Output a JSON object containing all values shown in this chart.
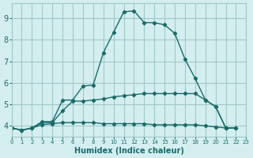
{
  "xlabel": "Humidex (Indice chaleur)",
  "background_color": "#d4eef0",
  "grid_color": "#a0c8c8",
  "line_color": "#1a6b6b",
  "xlim": [
    0,
    23
  ],
  "ylim": [
    3.5,
    9.7
  ],
  "xticks": [
    0,
    1,
    2,
    3,
    4,
    5,
    6,
    7,
    8,
    9,
    10,
    11,
    12,
    13,
    14,
    15,
    16,
    17,
    18,
    19,
    20,
    21,
    22,
    23
  ],
  "yticks": [
    4,
    5,
    6,
    7,
    8,
    9
  ],
  "series": [
    {
      "x": [
        0,
        1,
        2,
        3,
        4,
        5,
        6,
        7,
        8,
        9,
        10,
        11,
        12,
        13,
        14,
        15,
        16,
        17,
        18,
        19,
        20,
        21,
        22
      ],
      "y": [
        3.9,
        3.8,
        3.9,
        4.2,
        4.2,
        5.2,
        5.2,
        5.85,
        5.9,
        7.4,
        8.35,
        9.3,
        9.35,
        8.8,
        8.8,
        8.7,
        8.3,
        7.1,
        6.2,
        5.2,
        4.9,
        3.9,
        3.9
      ]
    },
    {
      "x": [
        0,
        1,
        2,
        3,
        4,
        5,
        6,
        7,
        8,
        9,
        10,
        11,
        12,
        13,
        14,
        15,
        16,
        17,
        18,
        19,
        20,
        21,
        22
      ],
      "y": [
        3.9,
        3.8,
        3.9,
        4.15,
        4.15,
        4.7,
        5.15,
        5.15,
        5.2,
        5.25,
        5.35,
        5.4,
        5.45,
        5.5,
        5.5,
        5.5,
        5.5,
        5.5,
        5.5,
        5.2,
        4.9,
        3.9,
        3.9
      ]
    },
    {
      "x": [
        0,
        1,
        2,
        3,
        4,
        5,
        6,
        7,
        8,
        9,
        10,
        11,
        12,
        13,
        14,
        15,
        16,
        17,
        18,
        19,
        20,
        21,
        22
      ],
      "y": [
        3.9,
        3.8,
        3.9,
        4.05,
        4.1,
        4.15,
        4.15,
        4.15,
        4.15,
        4.1,
        4.1,
        4.1,
        4.1,
        4.1,
        4.05,
        4.05,
        4.05,
        4.05,
        4.05,
        4.0,
        3.95,
        3.9,
        3.9
      ]
    }
  ]
}
